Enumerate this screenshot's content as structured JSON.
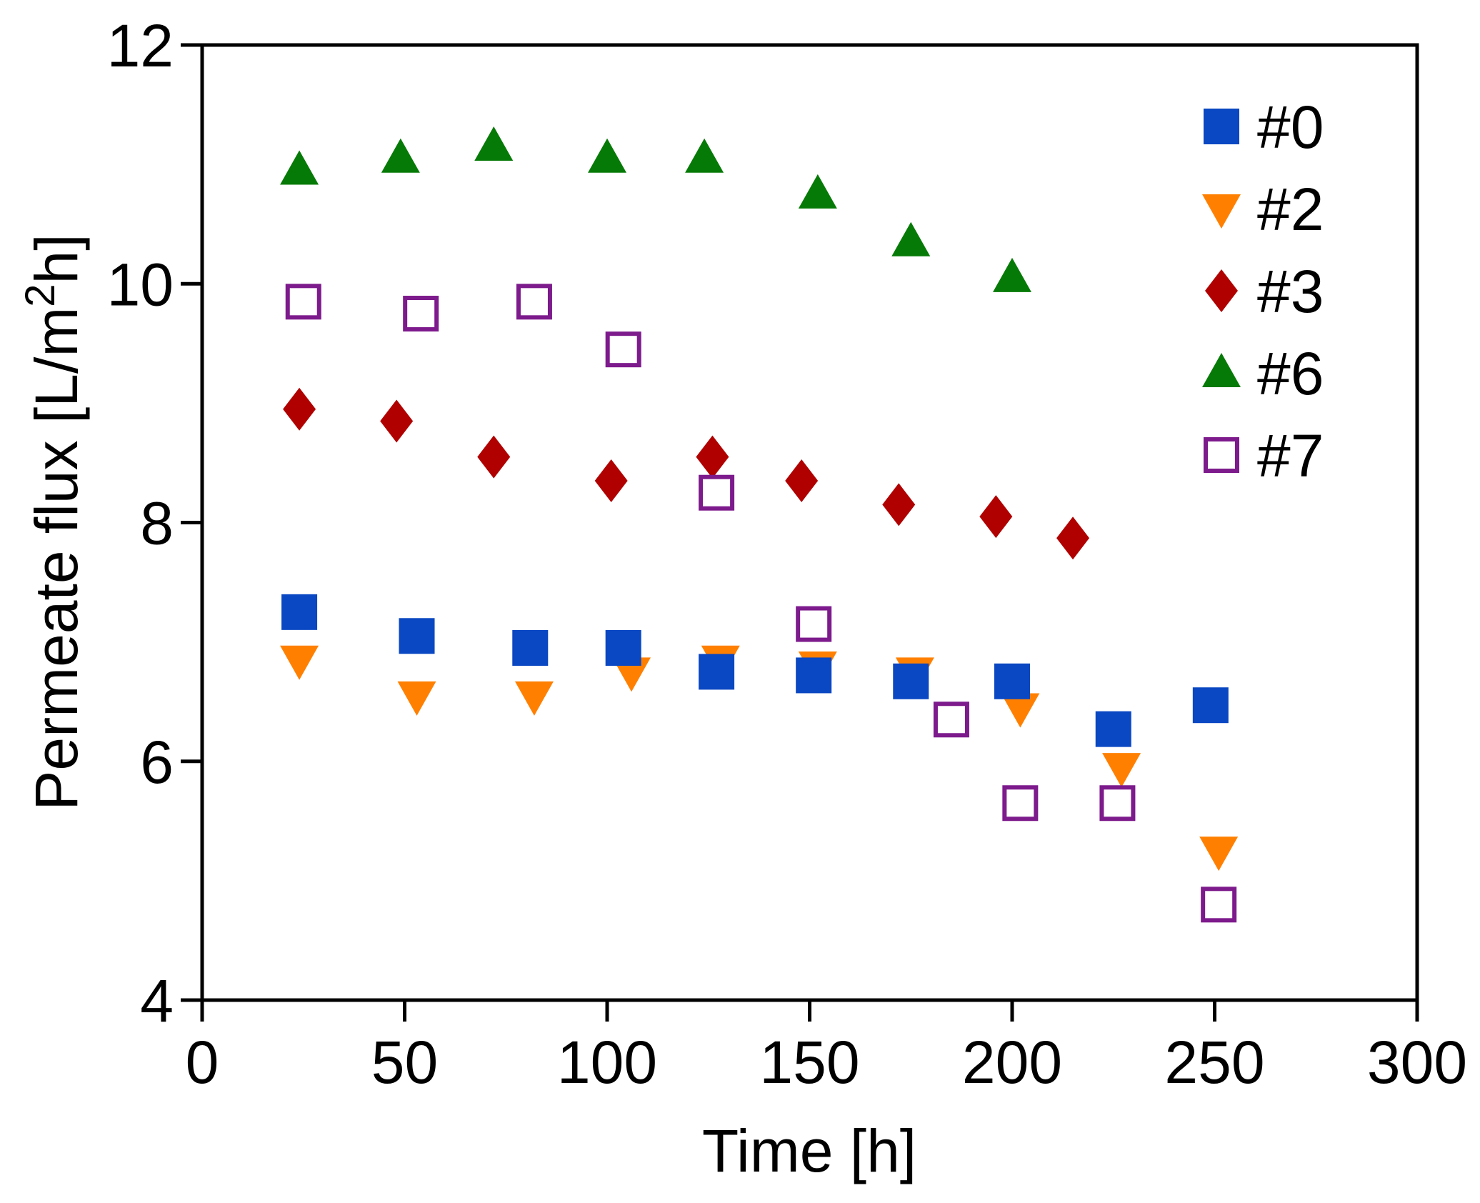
{
  "chart_data": {
    "type": "scatter",
    "title": "",
    "xlabel": "Time [h]",
    "ylabel_parts": {
      "before": "Permeate flux [L/m",
      "sup": "2",
      "after": "h]"
    },
    "xlim": [
      0,
      300
    ],
    "ylim": [
      4,
      12
    ],
    "xticks": [
      0,
      50,
      100,
      150,
      200,
      250,
      300
    ],
    "yticks": [
      4,
      6,
      8,
      10,
      12
    ],
    "grid": false,
    "legend_position": "top-right",
    "series": [
      {
        "name": "#0",
        "marker": "square",
        "color": "#0a47c2",
        "filled": true,
        "x": [
          24,
          53,
          81,
          104,
          127,
          151,
          175,
          200,
          225,
          249
        ],
        "y": [
          7.25,
          7.05,
          6.95,
          6.95,
          6.75,
          6.72,
          6.67,
          6.67,
          6.27,
          6.47
        ]
      },
      {
        "name": "#2",
        "marker": "triangle-down",
        "color": "#ff8000",
        "filled": true,
        "x": [
          24,
          53,
          82,
          106,
          128,
          152,
          176,
          202,
          227,
          251
        ],
        "y": [
          6.85,
          6.55,
          6.55,
          6.75,
          6.85,
          6.8,
          6.75,
          6.45,
          5.95,
          5.25
        ]
      },
      {
        "name": "#3",
        "marker": "diamond",
        "color": "#b00000",
        "filled": true,
        "x": [
          24,
          48,
          72,
          101,
          126,
          148,
          172,
          196,
          215
        ],
        "y": [
          8.95,
          8.85,
          8.55,
          8.35,
          8.55,
          8.35,
          8.15,
          8.05,
          7.87
        ]
      },
      {
        "name": "#6",
        "marker": "triangle-up",
        "color": "#067a06",
        "filled": true,
        "x": [
          24,
          49,
          72,
          100,
          124,
          152,
          175,
          200
        ],
        "y": [
          10.95,
          11.05,
          11.15,
          11.05,
          11.05,
          10.75,
          10.35,
          10.05
        ]
      },
      {
        "name": "#7",
        "marker": "square",
        "color": "#7d1a8c",
        "filled": false,
        "x": [
          25,
          54,
          82,
          104,
          127,
          151,
          185,
          202,
          226,
          251
        ],
        "y": [
          9.85,
          9.75,
          9.85,
          9.45,
          8.25,
          7.15,
          6.35,
          5.65,
          5.65,
          4.8
        ]
      }
    ]
  }
}
